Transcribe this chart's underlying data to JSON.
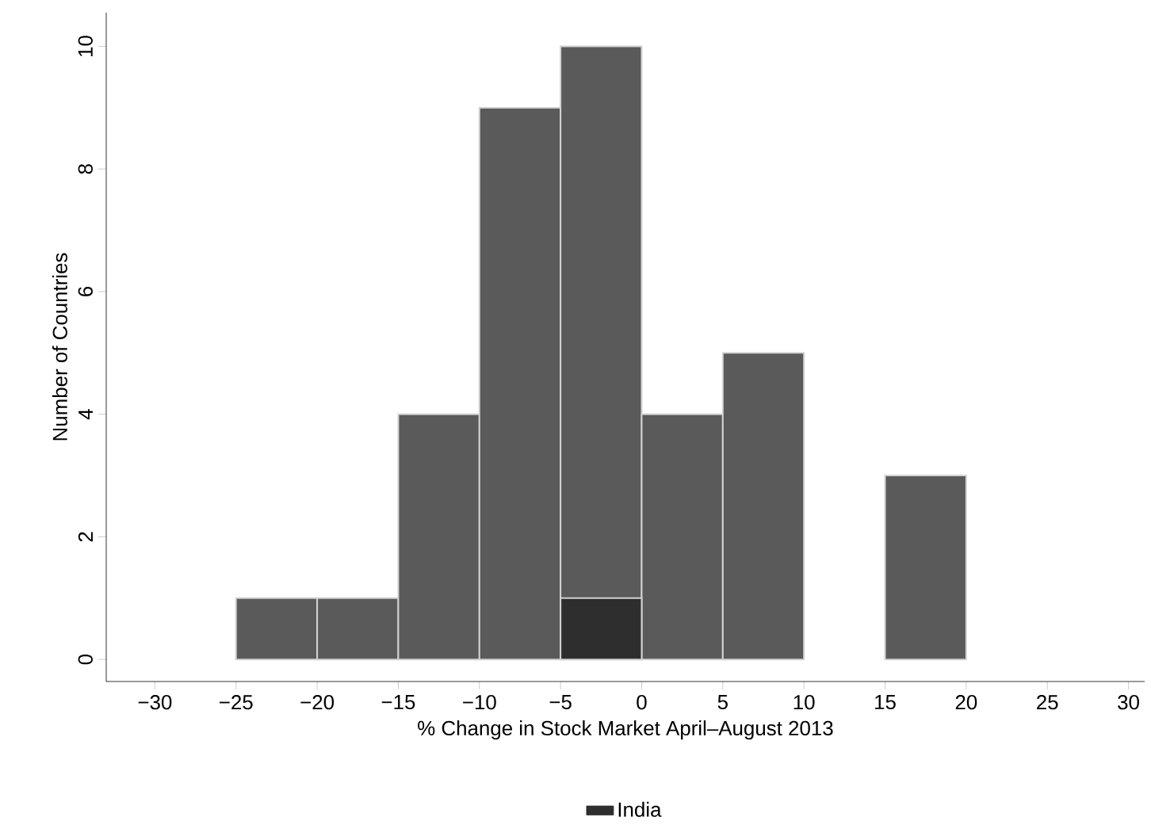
{
  "chart_data": {
    "type": "histogram",
    "xlabel": "% Change in Stock Market April–August 2013",
    "ylabel": "Number of Countries",
    "bins": [
      -25,
      -20,
      -15,
      -10,
      -5,
      0,
      5,
      10,
      15,
      20
    ],
    "series": [
      {
        "color": "#5a5a5a",
        "values": [
          1,
          1,
          4,
          9,
          10,
          4,
          5,
          0,
          3
        ]
      },
      {
        "name": "India",
        "color": "#2e2e2e",
        "values": [
          null,
          null,
          null,
          null,
          1,
          null,
          null,
          null,
          null
        ]
      }
    ],
    "xlim": [
      -33,
      31
    ],
    "ylim": [
      -0.36,
      10.55
    ],
    "xticks": [
      {
        "value": -30,
        "label": "−30"
      },
      {
        "value": -25,
        "label": "−25"
      },
      {
        "value": -20,
        "label": "−20"
      },
      {
        "value": -15,
        "label": "−15"
      },
      {
        "value": -10,
        "label": "−10"
      },
      {
        "value": -5,
        "label": "−5"
      },
      0,
      5,
      10,
      15,
      20,
      25,
      30
    ],
    "yticks": [
      0,
      2,
      4,
      6,
      8,
      10
    ],
    "grid": false,
    "legend": "bottom"
  }
}
